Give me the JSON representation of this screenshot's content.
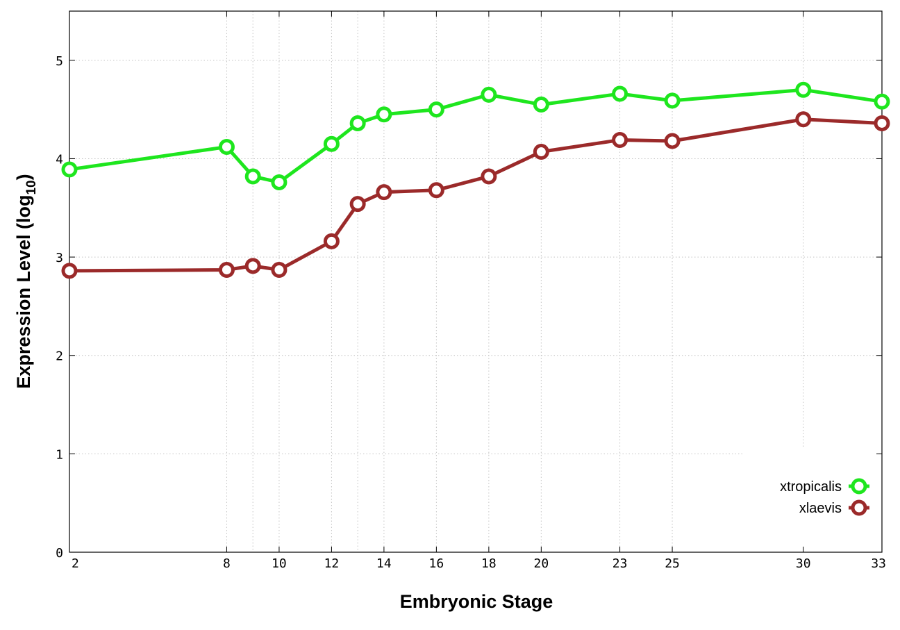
{
  "chart_data": {
    "type": "line",
    "title": "",
    "xlabel": "Embryonic Stage",
    "ylabel_main": "Expression Level (log",
    "ylabel_sub": "10",
    "ylabel_close": ")",
    "xlim": [
      2,
      33
    ],
    "ylim": [
      0,
      5.5
    ],
    "x_ticks": [
      2,
      8,
      10,
      12,
      14,
      16,
      18,
      20,
      23,
      25,
      30,
      33
    ],
    "y_ticks": [
      0,
      1,
      2,
      3,
      4,
      5
    ],
    "x_grid": [
      8,
      9,
      10,
      12,
      13,
      14,
      16,
      18,
      20,
      23,
      25,
      30
    ],
    "grid": true,
    "legend_position": "bottom-right",
    "x": [
      2,
      8,
      9,
      10,
      12,
      13,
      14,
      16,
      18,
      20,
      23,
      25,
      30,
      33
    ],
    "series": [
      {
        "name": "xtropicalis",
        "color": "#1ee61e",
        "values": [
          3.89,
          4.12,
          3.82,
          3.76,
          4.15,
          4.36,
          4.45,
          4.5,
          4.65,
          4.55,
          4.66,
          4.59,
          4.7,
          4.58
        ]
      },
      {
        "name": "xlaevis",
        "color": "#9b2a2a",
        "values": [
          2.86,
          2.87,
          2.91,
          2.87,
          3.16,
          3.54,
          3.66,
          3.68,
          3.82,
          4.07,
          4.19,
          4.18,
          4.4,
          4.36
        ]
      }
    ]
  }
}
